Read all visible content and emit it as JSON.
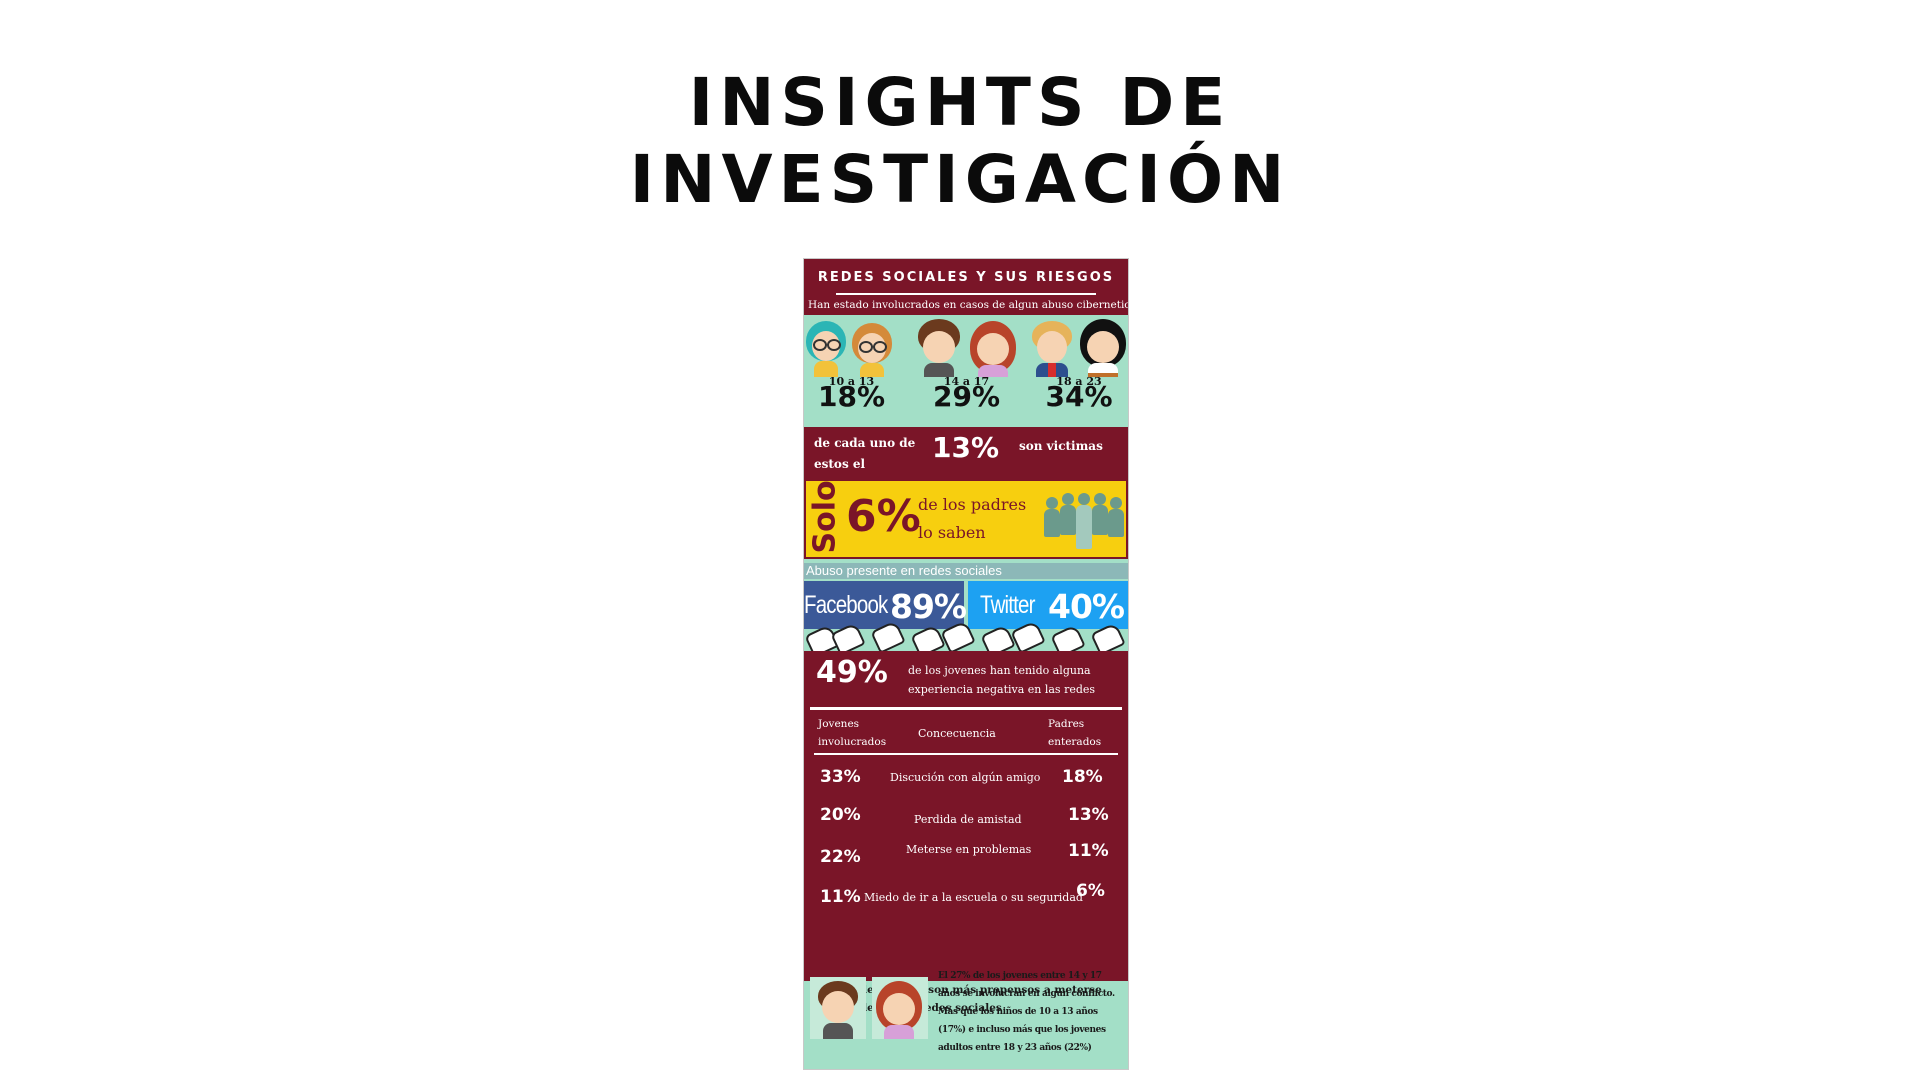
{
  "title": {
    "line1": "INSIGHTS DE",
    "line2": "INVESTIGACIÓN"
  },
  "infographic": {
    "header": "REDES SOCIALES Y SUS RIESGOS",
    "subtitle": "Han estado involucrados en casos de algun abuso cibernetico",
    "age_groups": [
      {
        "label": "10 a 13",
        "value": "18%"
      },
      {
        "label": "14 a 17",
        "value": "29%"
      },
      {
        "label": "18 a 23",
        "value": "34%"
      }
    ],
    "victims": {
      "prefix": "de cada uno de estos el",
      "value": "13%",
      "suffix": "son victimas"
    },
    "parents": {
      "solo": "Solo",
      "value": "6%",
      "text": "de los padres lo saben"
    },
    "abuse": {
      "label": "Abuso presente en redes sociales",
      "facebook": {
        "name": "Facebook",
        "value": "89%"
      },
      "twitter": {
        "name": "Twitter",
        "value": "40%"
      }
    },
    "negative": {
      "value": "49%",
      "text": "de los jovenes han tenido alguna experiencia negativa en las redes"
    },
    "table": {
      "headers": [
        "Jovenes involucrados",
        "Concecuencia",
        "Padres enterados"
      ],
      "rows": [
        {
          "jovenes": "33%",
          "consecuencia": "Discución con algún amigo",
          "padres": "18%"
        },
        {
          "jovenes": "20%",
          "consecuencia": "Perdida de amistad",
          "padres": "13%"
        },
        {
          "jovenes": "22%",
          "consecuencia": "Meterse en problemas",
          "padres": "11%"
        },
        {
          "jovenes": "11%",
          "consecuencia": "Miedo de ir a la escuela o su seguridad",
          "padres": "6%"
        }
      ]
    },
    "footer": {
      "heading": "Los adolesecentes son más propensos a meterse en problemas en redes sociales",
      "body": "El 27% de los jovenes entre 14 y 17 años se involucran en algun conflicto. Más que los niños de 10 a 13 años (17%) e incluso más que los jovenes adultos entre 18 y 23 años (22%)"
    }
  },
  "colors": {
    "maroon": "#7a1528",
    "mint": "#a3dfc7",
    "yellow": "#f7cf0f",
    "facebook": "#3b5998",
    "twitter": "#1da1f2"
  }
}
